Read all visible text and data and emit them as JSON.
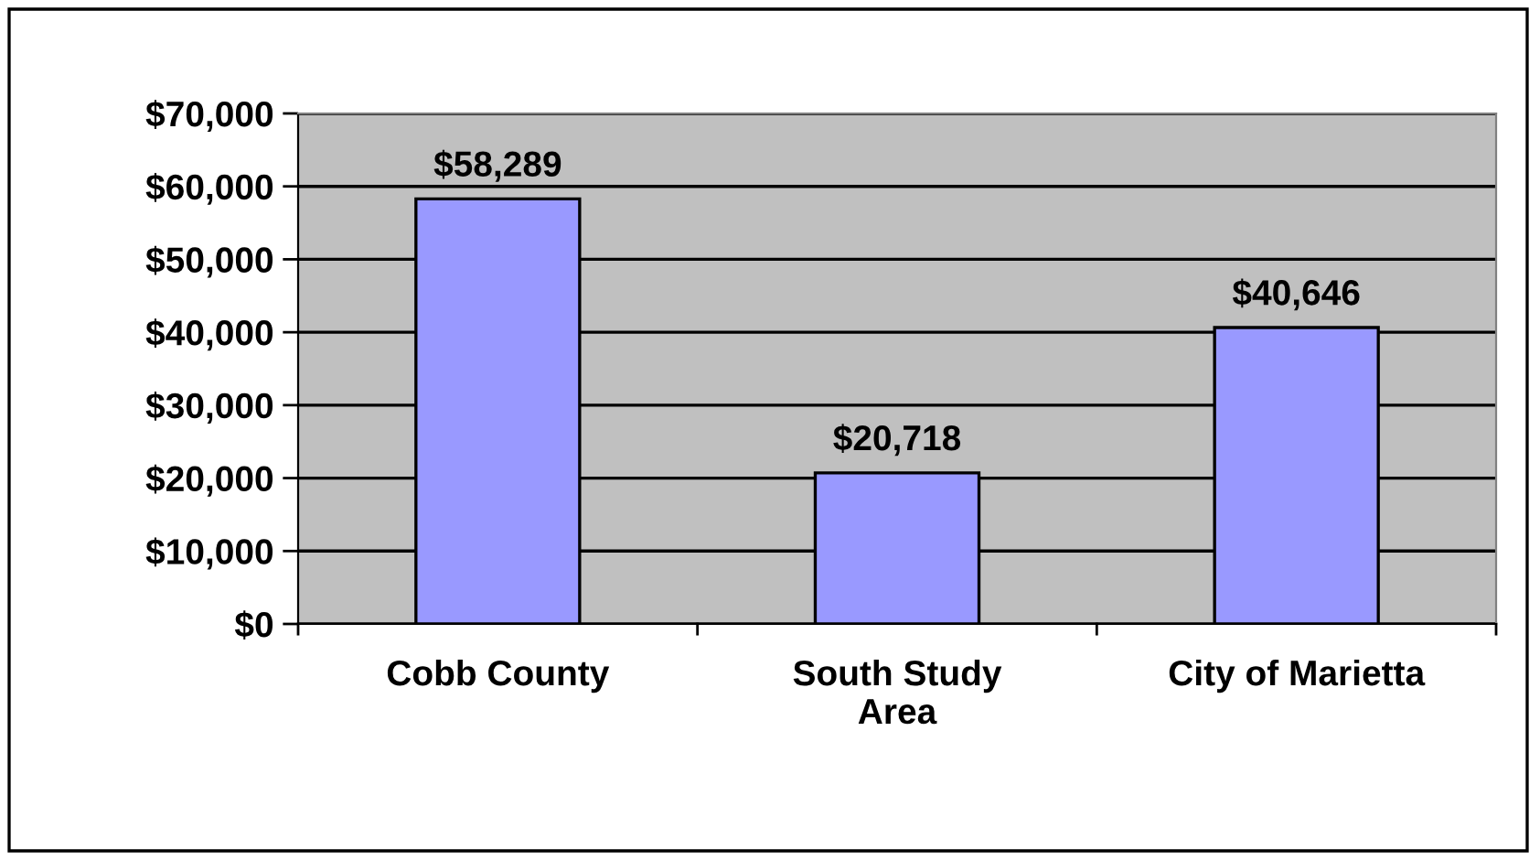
{
  "chart_data": {
    "type": "bar",
    "categories": [
      "Cobb County",
      "South Study\nArea",
      "City of Marietta"
    ],
    "values": [
      58289,
      20718,
      40646
    ],
    "value_labels": [
      "$58,289",
      "$20,718",
      "$40,646"
    ],
    "color": "#9999ff",
    "ylim": [
      0,
      70000
    ],
    "yticks": [
      {
        "value": 0,
        "label": "$0"
      },
      {
        "value": 10000,
        "label": "$10,000"
      },
      {
        "value": 20000,
        "label": "$20,000"
      },
      {
        "value": 30000,
        "label": "$30,000"
      },
      {
        "value": 40000,
        "label": "$40,000"
      },
      {
        "value": 50000,
        "label": "$50,000"
      },
      {
        "value": 60000,
        "label": "$60,000"
      },
      {
        "value": 70000,
        "label": "$70,000"
      }
    ],
    "grid": "y",
    "legend": false
  }
}
